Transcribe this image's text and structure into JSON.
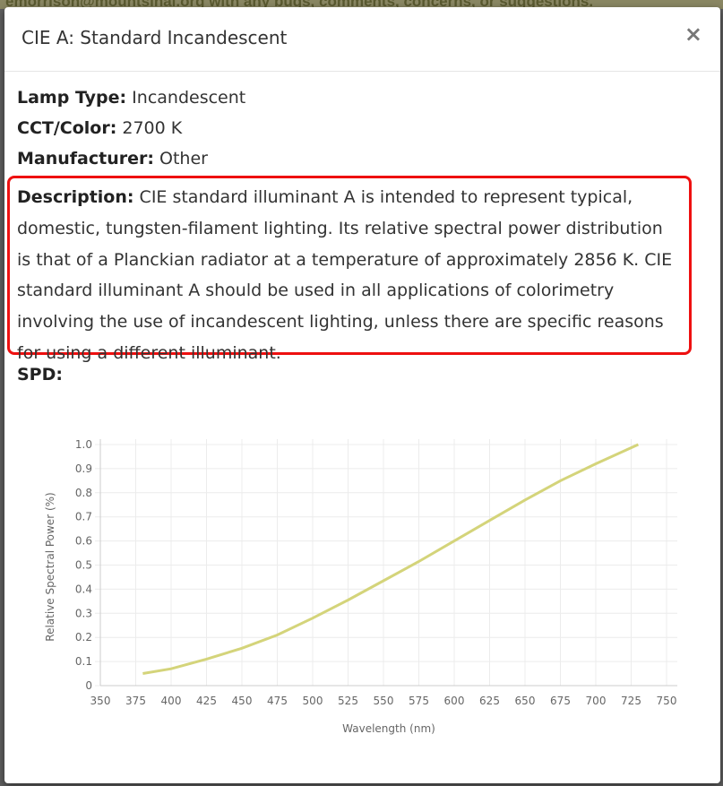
{
  "backdrop": {
    "text": "emorrison@mountsinai.org with any bugs, comments, concerns, or suggestions."
  },
  "modal": {
    "title": "CIE A: Standard Incandescent",
    "close_label": "×",
    "fields": {
      "lamp_type_label": "Lamp Type:",
      "lamp_type_value": "Incandescent",
      "cct_label": "CCT/Color:",
      "cct_value": "2700 K",
      "manufacturer_label": "Manufacturer:",
      "manufacturer_value": "Other",
      "description_label": "Description:",
      "description_value": "CIE standard illuminant A is intended to represent typical, domestic, tungsten-filament lighting. Its relative spectral power distribution is that of a Planckian radiator at a temperature of approximately 2856 K. CIE standard illuminant A should be used in all applications of colorimetry involving the use of incandescent lighting, unless there are specific reasons for using a different illuminant.",
      "spd_label": "SPD:"
    },
    "colors": {
      "highlight_border": "#ee1010",
      "series_line": "#d4d47a"
    }
  },
  "chart_data": {
    "type": "line",
    "xlabel": "Wavelength (nm)",
    "ylabel": "Relative Spectral Power (%)",
    "xlim": [
      350,
      750
    ],
    "ylim": [
      0,
      1.0
    ],
    "xticks": [
      "350",
      "375",
      "400",
      "425",
      "450",
      "475",
      "500",
      "525",
      "550",
      "575",
      "600",
      "625",
      "650",
      "675",
      "700",
      "725",
      "750"
    ],
    "yticks": [
      "0",
      "0.1",
      "0.2",
      "0.3",
      "0.4",
      "0.5",
      "0.6",
      "0.7",
      "0.8",
      "0.9",
      "1.0"
    ],
    "grid": true,
    "series": [
      {
        "x": [
          380,
          400,
          425,
          450,
          475,
          500,
          525,
          550,
          575,
          600,
          625,
          650,
          675,
          700,
          730
        ],
        "y": [
          0.05,
          0.07,
          0.11,
          0.155,
          0.21,
          0.28,
          0.355,
          0.435,
          0.515,
          0.6,
          0.685,
          0.77,
          0.85,
          0.92,
          1.0
        ]
      }
    ]
  }
}
